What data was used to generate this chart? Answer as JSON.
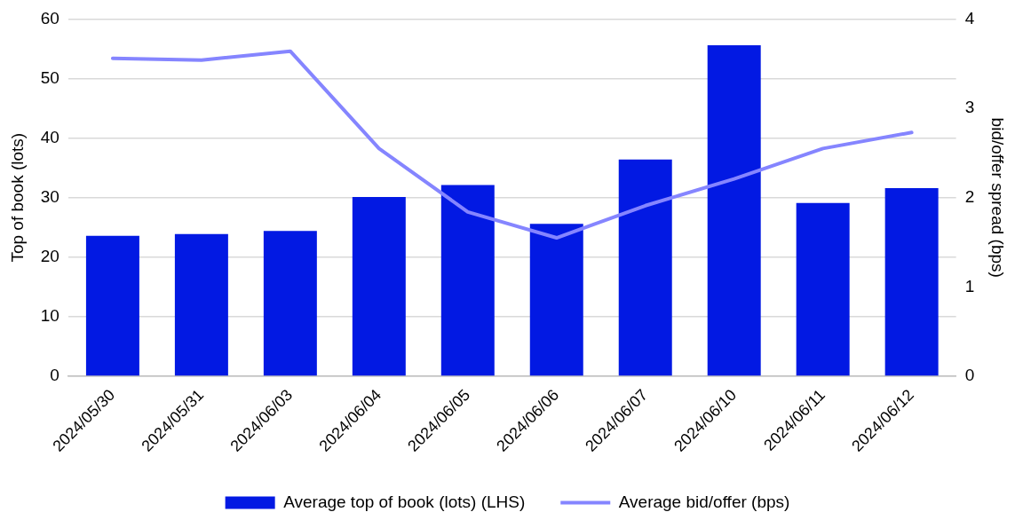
{
  "chart_data": {
    "type": "bar",
    "ylabel": "Top of book (lots)",
    "y2label": "bid/offer spread (bps)",
    "categories": [
      "2024/05/30",
      "2024/05/31",
      "2024/06/03",
      "2024/06/04",
      "2024/06/05",
      "2024/06/06",
      "2024/06/07",
      "2024/06/10",
      "2024/06/11",
      "2024/06/12"
    ],
    "series": [
      {
        "name": "Average top of book (lots) (LHS)",
        "color": "#0219e3",
        "values": [
          23.6,
          23.9,
          24.4,
          30.1,
          32.1,
          25.6,
          36.4,
          55.6,
          29.1,
          31.6
        ]
      },
      {
        "name": "Average bid/offer (bps)",
        "type": "line",
        "axis": "y2",
        "color": "#8585ff",
        "values": [
          3.56,
          3.54,
          3.64,
          2.55,
          1.84,
          1.55,
          1.91,
          2.21,
          2.55,
          2.73
        ]
      }
    ],
    "ylim": [
      0,
      60
    ],
    "yticks": [
      0,
      10,
      20,
      30,
      40,
      50,
      60
    ],
    "y2lim": [
      0,
      4
    ],
    "y2ticks": [
      0,
      1,
      2,
      3,
      4
    ],
    "grid": "y",
    "legend": "bottom",
    "marker": "none",
    "line_style": "solid"
  }
}
